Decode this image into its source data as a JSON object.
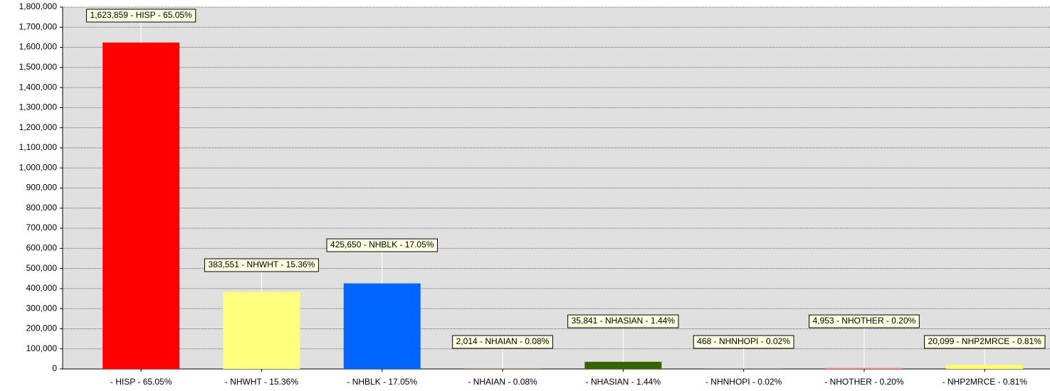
{
  "chart_data": {
    "type": "bar",
    "categories": [
      "- HISP - 65.05%",
      "- NHWHT - 15.36%",
      "- NHBLK - 17.05%",
      "- NHAIAN - 0.08%",
      "- NHASIAN - 1.44%",
      "- NHNHOPI - 0.02%",
      "- NHOTHER - 0.20%",
      "- NHP2MRCE - 0.81%"
    ],
    "values": [
      1623859,
      383551,
      425650,
      2014,
      35841,
      468,
      4953,
      20099
    ],
    "value_labels": [
      "1,623,859 - HISP - 65.05%",
      "383,551 - NHWHT - 15.36%",
      "425,650 - NHBLK - 17.05%",
      "2,014 - NHAIAN - 0.08%",
      "35,841 - NHASIAN - 1.44%",
      "468 - NHNHOPI - 0.02%",
      "4,953 - NHOTHER - 0.20%",
      "20,099 - NHP2MRCE - 0.81%"
    ],
    "colors": [
      "#ff0000",
      "#ffff80",
      "#0066ff",
      "#8b4513",
      "#336600",
      "#9999ff",
      "#ff8080",
      "#ffff66"
    ],
    "ylim": [
      0,
      1800000
    ],
    "yticks": [
      0,
      {
        "value": 100000,
        "label": "100,000"
      },
      {
        "value": 200000,
        "label": "200,000"
      },
      {
        "value": 300000,
        "label": "300,000"
      },
      {
        "value": 400000,
        "label": "400,000"
      },
      {
        "value": 500000,
        "label": "500,000"
      },
      {
        "value": 600000,
        "label": "600,000"
      },
      {
        "value": 700000,
        "label": "700,000"
      },
      {
        "value": 800000,
        "label": "800,000"
      },
      {
        "value": 900000,
        "label": "900,000"
      },
      {
        "value": 1000000,
        "label": "1,000,000"
      },
      {
        "value": 1100000,
        "label": "1,100,000"
      },
      {
        "value": 1200000,
        "label": "1,200,000"
      },
      {
        "value": 1300000,
        "label": "1,300,000"
      },
      {
        "value": 1400000,
        "label": "1,400,000"
      },
      {
        "value": 1500000,
        "label": "1,500,000"
      },
      {
        "value": 1600000,
        "label": "1,600,000"
      },
      {
        "value": 1700000,
        "label": "1,700,000"
      },
      {
        "value": 1800000,
        "label": "1,800,000"
      }
    ],
    "grid": true
  }
}
